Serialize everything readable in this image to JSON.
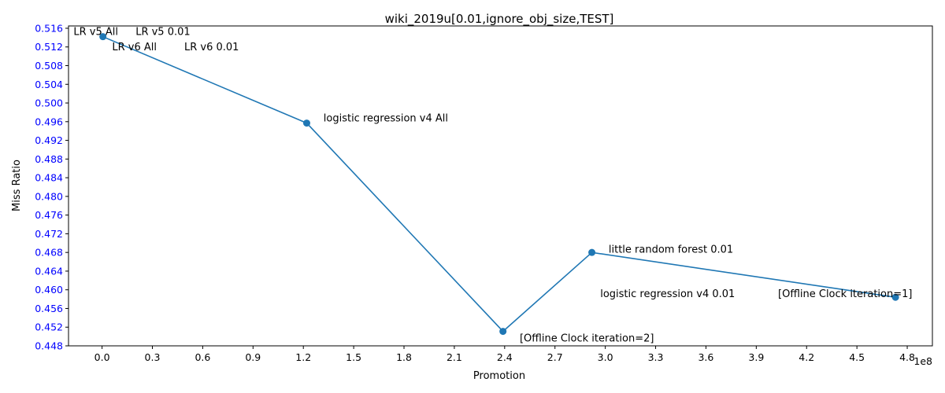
{
  "chart_data": {
    "type": "line",
    "title": "wiki_2019u[0.01,ignore_obj_size,TEST]",
    "xlabel": "Promotion",
    "ylabel": "Miss Ratio",
    "x_offset_label": "1e8",
    "xlim": [
      -0.2,
      4.95
    ],
    "ylim": [
      0.448,
      0.5165
    ],
    "xticks": [
      "0.0",
      "0.3",
      "0.6",
      "0.9",
      "1.2",
      "1.5",
      "1.8",
      "2.1",
      "2.4",
      "2.7",
      "3.0",
      "3.3",
      "3.6",
      "3.9",
      "4.2",
      "4.5",
      "4.8"
    ],
    "yticks": [
      "0.448",
      "0.452",
      "0.456",
      "0.460",
      "0.464",
      "0.468",
      "0.472",
      "0.476",
      "0.480",
      "0.484",
      "0.488",
      "0.492",
      "0.496",
      "0.500",
      "0.504",
      "0.508",
      "0.512",
      "0.516"
    ],
    "series": [
      {
        "color": "#1f77b4",
        "points": [
          {
            "x": 0.005,
            "y": 0.5142
          },
          {
            "x": 1.22,
            "y": 0.4957
          },
          {
            "x": 2.39,
            "y": 0.4511
          },
          {
            "x": 2.92,
            "y": 0.468
          },
          {
            "x": 4.73,
            "y": 0.4584
          }
        ]
      }
    ],
    "annotations": [
      {
        "text": "LR v5 All",
        "x": -0.17,
        "y": 0.5153
      },
      {
        "text": "LR v5 0.01",
        "x": 0.2,
        "y": 0.5153
      },
      {
        "text": "LR v6 All",
        "x": 0.06,
        "y": 0.512
      },
      {
        "text": "LR v6 0.01",
        "x": 0.49,
        "y": 0.512
      },
      {
        "text": "logistic regression v4 All",
        "x": 1.32,
        "y": 0.4968
      },
      {
        "text": "little random forest 0.01",
        "x": 3.02,
        "y": 0.4687
      },
      {
        "text": "logistic regression v4 0.01",
        "x": 2.97,
        "y": 0.4592
      },
      {
        "text": "[Offline Clock iteration=1]",
        "x": 4.03,
        "y": 0.4592
      },
      {
        "text": "[Offline Clock iteration=2]",
        "x": 2.49,
        "y": 0.4497
      }
    ],
    "grid": false
  }
}
